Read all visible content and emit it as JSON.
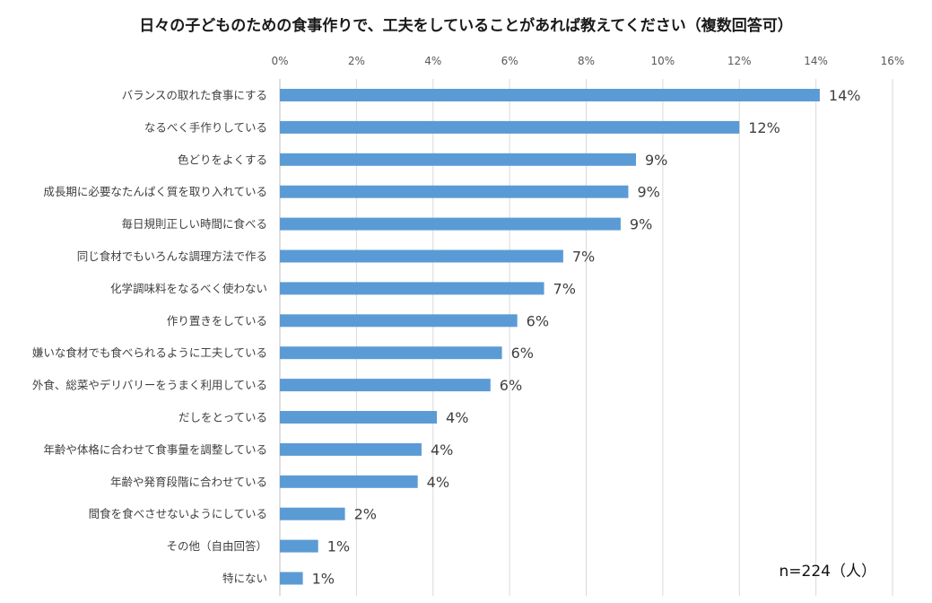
{
  "chart_data": {
    "type": "bar",
    "orientation": "horizontal",
    "title": "日々の子どものための食事作りで、工夫をしていることがあれば教えてください（複数回答可）",
    "xlim": [
      0,
      16
    ],
    "x_ticks": [
      0,
      2,
      4,
      6,
      8,
      10,
      12,
      14,
      16
    ],
    "x_tick_labels": [
      "0%",
      "2%",
      "4%",
      "6%",
      "8%",
      "10%",
      "12%",
      "14%",
      "16%"
    ],
    "grid": true,
    "color": "#5b9bd5",
    "categories": [
      "バランスの取れた食事にする",
      "なるべく手作りしている",
      "色どりをよくする",
      "成長期に必要なたんぱく質を取り入れている",
      "毎日規則正しい時間に食べる",
      "同じ食材でもいろんな調理方法で作る",
      "化学調味料をなるべく使わない",
      "作り置きをしている",
      "嫌いな食材でも食べられるように工夫している",
      "外食、総菜やデリバリーをうまく利用している",
      "だしをとっている",
      "年齢や体格に合わせて食事量を調整している",
      "年齢や発育段階に合わせている",
      "間食を食べさせないようにしている",
      "その他（自由回答）",
      "特にない"
    ],
    "values": [
      14.1,
      12.0,
      9.3,
      9.1,
      8.9,
      7.4,
      6.9,
      6.2,
      5.8,
      5.5,
      4.1,
      3.7,
      3.6,
      1.7,
      1.0,
      0.6
    ],
    "data_labels": [
      "14%",
      "12%",
      "9%",
      "9%",
      "9%",
      "7%",
      "7%",
      "6%",
      "6%",
      "6%",
      "4%",
      "4%",
      "4%",
      "2%",
      "1%",
      "1%"
    ],
    "sample_size": "n=224（人）"
  }
}
